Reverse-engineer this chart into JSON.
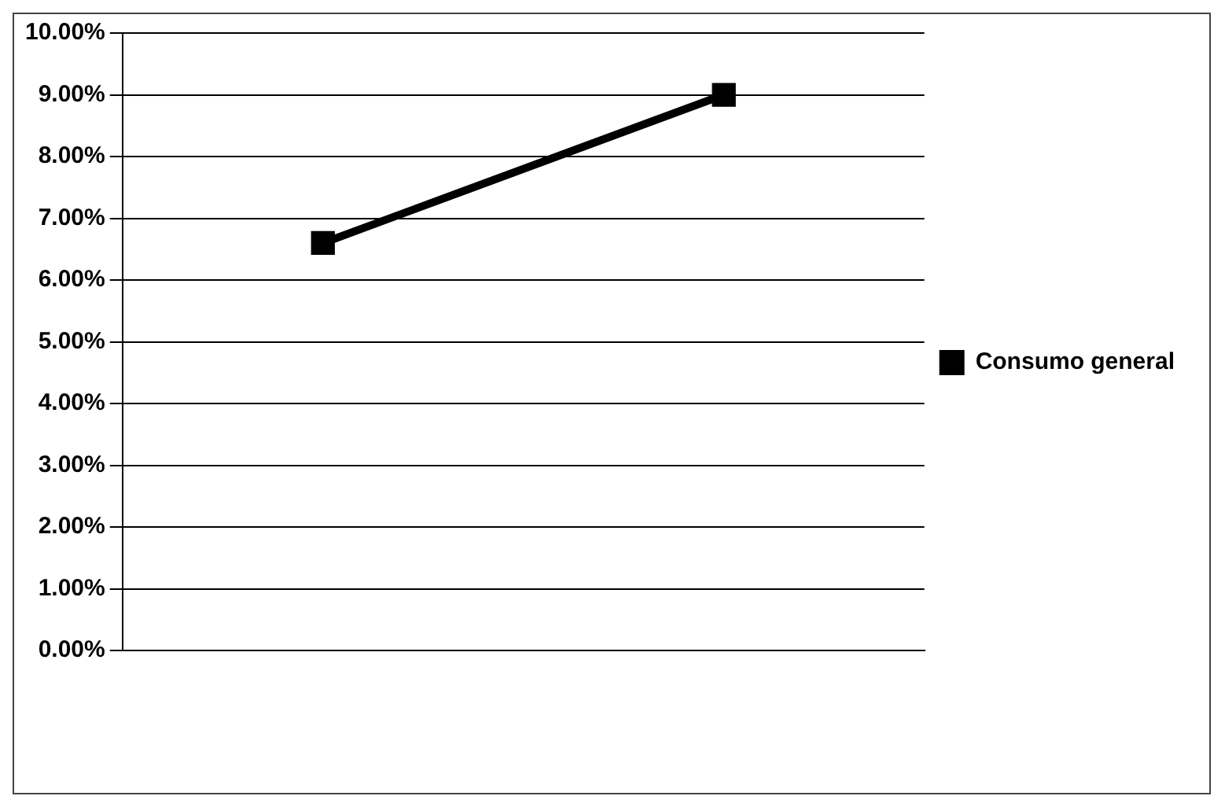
{
  "chart_data": {
    "type": "line",
    "categories": [
      null,
      null
    ],
    "series": [
      {
        "name": "Consumo general",
        "color": "#000000",
        "values": [
          6.6,
          9.0
        ]
      }
    ],
    "ylim": [
      0,
      10
    ],
    "yticks": [
      {
        "value": 0,
        "label": "0.00%"
      },
      {
        "value": 1,
        "label": "1.00%"
      },
      {
        "value": 2,
        "label": "2.00%"
      },
      {
        "value": 3,
        "label": "3.00%"
      },
      {
        "value": 4,
        "label": "4.00%"
      },
      {
        "value": 5,
        "label": "5.00%"
      },
      {
        "value": 6,
        "label": "6.00%"
      },
      {
        "value": 7,
        "label": "7.00%"
      },
      {
        "value": 8,
        "label": "8.00%"
      },
      {
        "value": 9,
        "label": "9.00%"
      },
      {
        "value": 10,
        "label": "10.00%"
      }
    ],
    "grid": "y",
    "legend": "right",
    "marker": "square",
    "line_style": "solid"
  }
}
